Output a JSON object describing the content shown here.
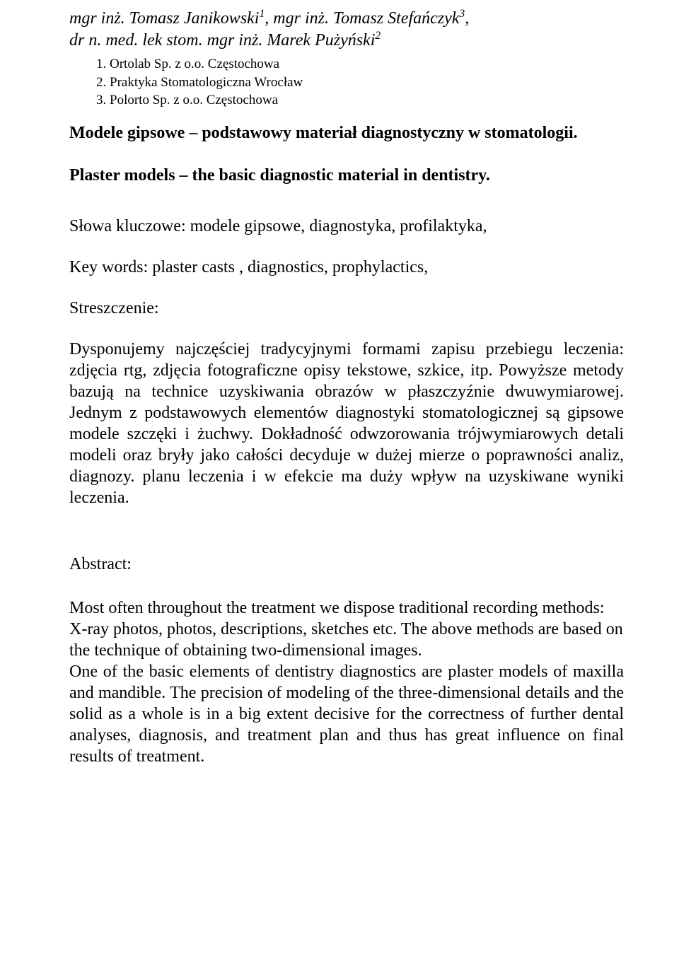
{
  "authors": {
    "a1_pre": "mgr inż. Tomasz Janikowski",
    "a1_sup": "1",
    "sep1": ", ",
    "a2_pre": "mgr inż. Tomasz Stefańczyk",
    "a2_sup": "3",
    "sep2": ",",
    "line2_pre": "dr n. med. lek stom. mgr inż. Marek Pużyński",
    "a3_sup": "2"
  },
  "affiliations": {
    "l1": "1.   Ortolab Sp. z o.o. Częstochowa",
    "l2": "2.   Praktyka Stomatologiczna Wrocław",
    "l3": "3.   Polorto Sp. z o.o. Częstochowa"
  },
  "title_pl": "Modele gipsowe – podstawowy materiał diagnostyczny w stomatologii.",
  "title_en": "Plaster models – the  basic diagnostic  material  in dentistry.",
  "keywords_pl": "Słowa kluczowe: modele gipsowe, diagnostyka, profilaktyka,",
  "keywords_en": "Key words: plaster casts , diagnostics, prophylactics,",
  "heading_streszczenie": "Streszczenie:",
  "body_pl": "Dysponujemy najczęściej tradycyjnymi formami zapisu przebiegu leczenia: zdjęcia rtg, zdjęcia fotograficzne opisy tekstowe, szkice, itp. Powyższe metody bazują na technice uzyskiwania obrazów w płaszczyźnie dwuwymiarowej. Jednym z podstawowych elementów diagnostyki stomatologicznej są gipsowe modele szczęki i żuchwy. Dokładność odwzorowania trójwymiarowych detali modeli oraz bryły jako całości decyduje w dużej mierze o poprawności analiz, diagnozy. planu leczenia i w efekcie ma duży wpływ na uzyskiwane wyniki leczenia.",
  "heading_abstract": "Abstract:",
  "body_en_p1": "Most often throughout the treatment we dispose traditional recording methods: X-ray photos, photos, descriptions, sketches etc. The above methods are based on the technique of obtaining two-dimensional images.",
  "body_en_p2": "One of the basic elements of dentistry diagnostics are plaster models of maxilla and mandible. The precision of modeling of the three-dimensional details and the solid as a whole is in a big extent decisive for the correctness of further dental analyses, diagnosis, and treatment plan and thus has great influence on final results of treatment."
}
